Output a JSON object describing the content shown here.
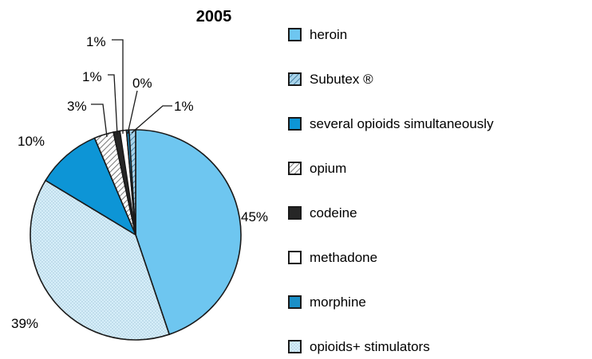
{
  "chart_data": {
    "type": "pie",
    "title": "2005",
    "unit": "%",
    "slices": [
      {
        "name": "heroin",
        "value": 45,
        "label": "45%",
        "color": "#6ec6f0",
        "pattern": "solid"
      },
      {
        "name": "opioids+ stimulators",
        "value": 39,
        "label": "39%",
        "color": "#cfeaf8",
        "pattern": "dots"
      },
      {
        "name": "several opioids simultaneously",
        "value": 10,
        "label": "10%",
        "color": "#0d95d6",
        "pattern": "solid"
      },
      {
        "name": "opium",
        "value": 3,
        "label": "3%",
        "color": "#d9d9d9",
        "pattern": "hatch"
      },
      {
        "name": "codeine",
        "value": 1,
        "label": "1%",
        "color": "#262626",
        "pattern": "solid"
      },
      {
        "name": "methadone",
        "value": 1,
        "label": "1%",
        "color": "#ffffff",
        "pattern": "solid"
      },
      {
        "name": "morphine",
        "value": 0.4,
        "label": "0%",
        "color": "#1a8fc7",
        "pattern": "solid"
      },
      {
        "name": "Subutex ®",
        "value": 1,
        "label": "1%",
        "color": "#b9d6e6",
        "pattern": "hatch"
      }
    ],
    "legend": {
      "position": "right",
      "items": [
        {
          "label": "heroin",
          "color": "#6ec6f0",
          "pattern": "solid"
        },
        {
          "label": "Subutex ®",
          "color": "#b9d6e6",
          "pattern": "hatch"
        },
        {
          "label": "several opioids simultaneously",
          "color": "#0d95d6",
          "pattern": "solid"
        },
        {
          "label": "opium",
          "color": "#d9d9d9",
          "pattern": "hatch"
        },
        {
          "label": "codeine",
          "color": "#262626",
          "pattern": "solid"
        },
        {
          "label": "methadone",
          "color": "#ffffff",
          "pattern": "solid"
        },
        {
          "label": "morphine",
          "color": "#1a8fc7",
          "pattern": "solid"
        },
        {
          "label": "opioids+ stimulators",
          "color": "#cfeaf8",
          "pattern": "dots"
        }
      ]
    }
  }
}
